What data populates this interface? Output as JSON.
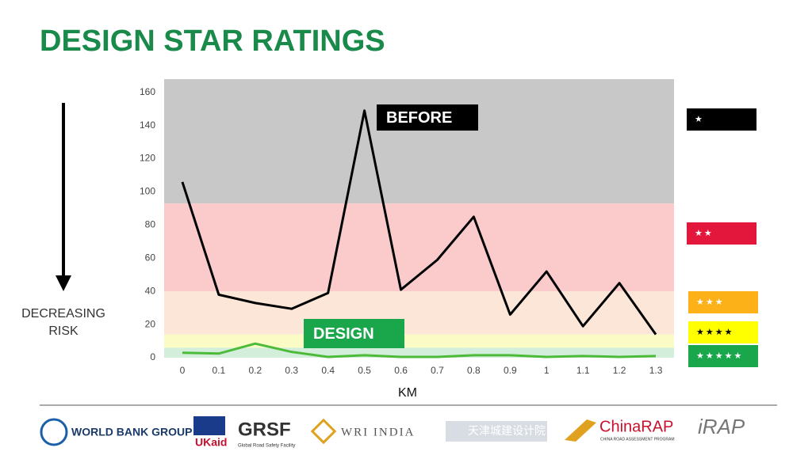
{
  "title": "DESIGN STAR RATINGS",
  "chart_data": {
    "type": "line",
    "x_label": "KM",
    "y_label": "DECREASING RISK",
    "x": [
      0,
      0.1,
      0.2,
      0.3,
      0.4,
      0.5,
      0.6,
      0.7,
      0.8,
      0.9,
      1,
      1.1,
      1.2,
      1.3
    ],
    "xlim": [
      -0.05,
      1.35
    ],
    "xticks": [
      0,
      0.1,
      0.2,
      0.3,
      0.4,
      0.5,
      0.6,
      0.7,
      0.8,
      0.9,
      1,
      1.1,
      1.2,
      1.3
    ],
    "ylim": [
      0,
      168
    ],
    "yticks": [
      0,
      20,
      40,
      60,
      80,
      100,
      120,
      140,
      160
    ],
    "series": [
      {
        "name": "BEFORE",
        "color": "#000000",
        "label_color": "#000000",
        "values": [
          106,
          38,
          33,
          29.5,
          39,
          149,
          41,
          59,
          85,
          26,
          52,
          19,
          45,
          14
        ]
      },
      {
        "name": "DESIGN",
        "color": "#4cbb3a",
        "label_color": "#1aa64a",
        "values": [
          3,
          2.5,
          8.5,
          3.5,
          0.5,
          1.5,
          0.5,
          0.5,
          1.5,
          1.5,
          0.5,
          1,
          0.5,
          1
        ]
      }
    ],
    "bands": [
      {
        "from": 93,
        "to": 168,
        "color": "#c8c8c8",
        "stars": "★",
        "box_color": "#000000",
        "star_color": "#ffffff"
      },
      {
        "from": 40,
        "to": 93,
        "color": "#fbcaca",
        "stars": "★★",
        "box_color": "#e3173b",
        "star_color": "#ffffff"
      },
      {
        "from": 14,
        "to": 40,
        "color": "#fbe6d8",
        "stars": "★★★",
        "box_color": "#fbb117",
        "star_color": "#ffffff"
      },
      {
        "from": 6,
        "to": 14,
        "color": "#fbfbc5",
        "stars": "★★★★",
        "box_color": "#ffff00",
        "star_color": "#000000"
      },
      {
        "from": 0,
        "to": 6,
        "color": "#d4eedc",
        "stars": "★★★★★",
        "box_color": "#1aa64a",
        "star_color": "#ffffff"
      }
    ]
  },
  "logos": [
    "WORLD BANK GROUP",
    "UKaid",
    "GRSF",
    "Global Road Safety Facility",
    "WRI INDIA",
    "天津城建设计院",
    "ChinaRAP",
    "CHINA ROAD ASSESSMENT PROGRAM",
    "iRAP"
  ]
}
